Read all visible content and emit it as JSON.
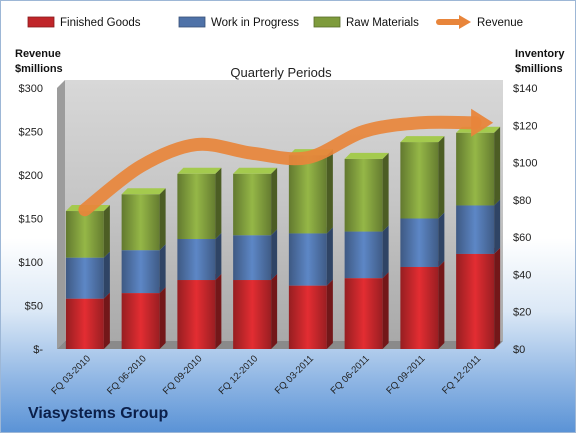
{
  "company": "Viasystems Group",
  "chart_data": {
    "type": "bar",
    "title": "Quarterly Periods",
    "categories": [
      "FQ 03-2010",
      "FQ 06-2010",
      "FQ 09-2010",
      "FQ 12-2010",
      "FQ 03-2011",
      "FQ 06-2011",
      "FQ 09-2011",
      "FQ 12-2011"
    ],
    "stacked": true,
    "series": [
      {
        "name": "Finished Goods",
        "color": "#c0262a",
        "values": [
          27,
          30,
          37,
          37,
          34,
          38,
          44,
          51
        ]
      },
      {
        "name": "Work in Progress",
        "color": "#4f72a8",
        "values": [
          22,
          23,
          22,
          24,
          28,
          25,
          26,
          26
        ]
      },
      {
        "name": "Raw Materials",
        "color": "#7e9b3c",
        "values": [
          25,
          30,
          35,
          33,
          42,
          39,
          41,
          39
        ]
      }
    ],
    "line_series": {
      "name": "Revenue",
      "color": "#e8853b",
      "axis": "left",
      "values": [
        160,
        210,
        235,
        225,
        220,
        250,
        260,
        260
      ]
    },
    "left_axis": {
      "label": [
        "Revenue",
        "$millions"
      ],
      "ticks": [
        "$-",
        "$50",
        "$100",
        "$150",
        "$200",
        "$250",
        "$300"
      ],
      "ylim": [
        0,
        300
      ]
    },
    "right_axis": {
      "label": [
        "Inventory",
        "$millions"
      ],
      "ticks": [
        "$0",
        "$20",
        "$40",
        "$60",
        "$80",
        "$100",
        "$120",
        "$140"
      ],
      "ylim": [
        0,
        140
      ]
    },
    "legend": "top",
    "grid": false
  }
}
